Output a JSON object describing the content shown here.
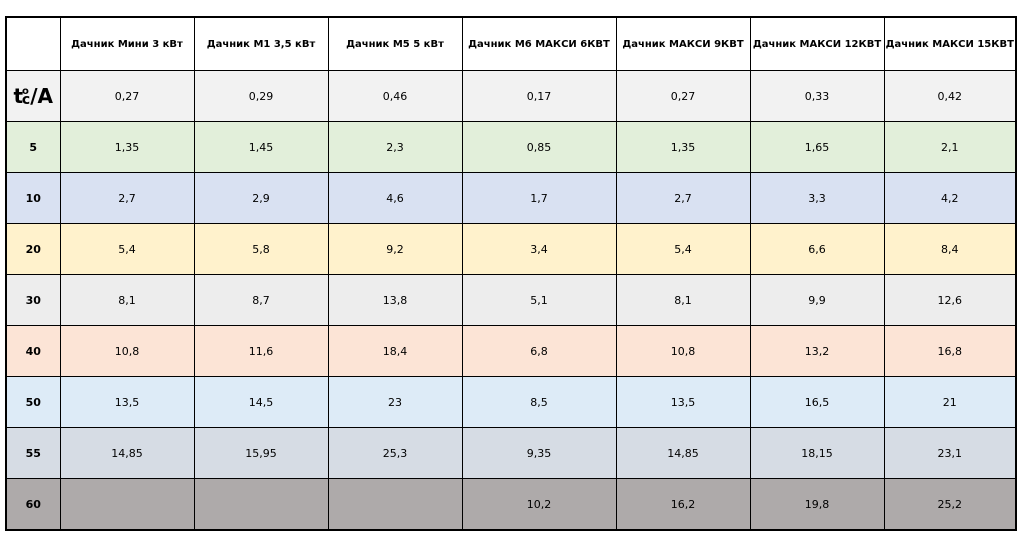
{
  "table": {
    "headers": [
      "",
      "Дачник Мини 3 кВт",
      "Дачник М1 3,5 кВт",
      "Дачник М5 5 кВт",
      "Дачник М6 МАКСИ 6КВТ",
      "Дачник МАКСИ 9КВТ",
      "Дачник МАКСИ 12КВТ",
      "Дачник МАКСИ 15КВТ"
    ],
    "unit_label": {
      "t": "t",
      "deg": "o",
      "c": "c",
      "rest": "/A"
    },
    "rows": [
      {
        "label": "",
        "values": [
          "0,27",
          "0,29",
          "0,46",
          "0,17",
          "0,27",
          "0,33",
          "0,42"
        ],
        "color": "#f2f2f2"
      },
      {
        "label": "5",
        "values": [
          "1,35",
          "1,45",
          "2,3",
          "0,85",
          "1,35",
          "1,65",
          "2,1"
        ],
        "color": "#e2efda"
      },
      {
        "label": "10",
        "values": [
          "2,7",
          "2,9",
          "4,6",
          "1,7",
          "2,7",
          "3,3",
          "4,2"
        ],
        "color": "#d9e1f2"
      },
      {
        "label": "20",
        "values": [
          "5,4",
          "5,8",
          "9,2",
          "3,4",
          "5,4",
          "6,6",
          "8,4"
        ],
        "color": "#fff2cc"
      },
      {
        "label": "30",
        "values": [
          "8,1",
          "8,7",
          "13,8",
          "5,1",
          "8,1",
          "9,9",
          "12,6"
        ],
        "color": "#ededed"
      },
      {
        "label": "40",
        "values": [
          "10,8",
          "11,6",
          "18,4",
          "6,8",
          "10,8",
          "13,2",
          "16,8"
        ],
        "color": "#fce4d6"
      },
      {
        "label": "50",
        "values": [
          "13,5",
          "14,5",
          "23",
          "8,5",
          "13,5",
          "16,5",
          "21"
        ],
        "color": "#ddebf7"
      },
      {
        "label": "55",
        "values": [
          "14,85",
          "15,95",
          "25,3",
          "9,35",
          "14,85",
          "18,15",
          "23,1"
        ],
        "color": "#d6dce4"
      },
      {
        "label": "60",
        "values": [
          "",
          "",
          "",
          "10,2",
          "16,2",
          "19,8",
          "25,2"
        ],
        "color": "#aeaaaa"
      }
    ]
  }
}
